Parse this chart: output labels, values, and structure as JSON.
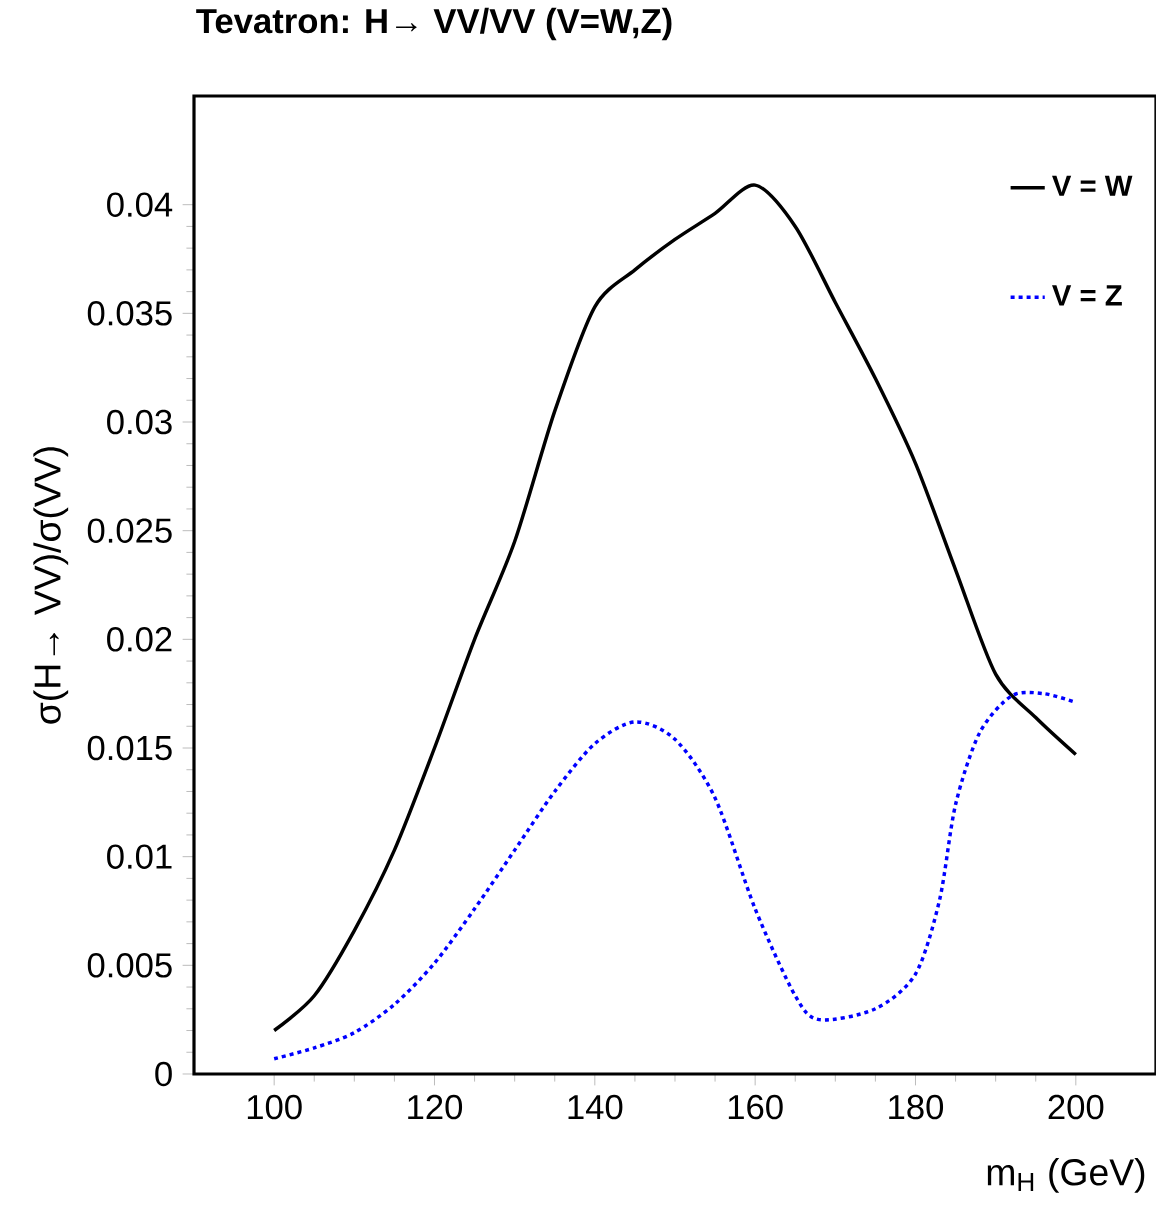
{
  "chart_data": {
    "type": "line",
    "title": "Tevatron: H→ VV/VV (V=W,Z)",
    "xlabel": "m$_{H}$ (GeV)",
    "ylabel": "σ(H→ VV)/σ(VV)",
    "x": [
      100,
      105,
      110,
      115,
      120,
      125,
      130,
      135,
      140,
      145,
      150,
      155,
      160,
      165,
      170,
      175,
      180,
      185,
      190,
      195,
      200
    ],
    "series": [
      {
        "name": "V = W",
        "color": "#000000",
        "line_style": "solid",
        "values": [
          0.002,
          0.0036,
          0.0066,
          0.0103,
          0.015,
          0.02,
          0.0245,
          0.0305,
          0.0353,
          0.037,
          0.0384,
          0.0396,
          0.0409,
          0.039,
          0.0355,
          0.032,
          0.0281,
          0.0232,
          0.0184,
          0.0164,
          0.0147
        ]
      },
      {
        "name": "V = Z",
        "color": "#0000ff",
        "line_style": "dotted",
        "x": [
          100,
          105,
          110,
          115,
          120,
          125,
          130,
          135,
          140,
          145,
          150,
          155,
          160,
          165,
          168,
          175,
          180,
          183,
          185,
          188,
          192,
          196,
          200
        ],
        "values": [
          0.0007,
          0.0012,
          0.0019,
          0.0032,
          0.0051,
          0.0076,
          0.0103,
          0.013,
          0.0152,
          0.0162,
          0.0154,
          0.0127,
          0.0076,
          0.0036,
          0.0025,
          0.003,
          0.0046,
          0.008,
          0.0124,
          0.0157,
          0.0174,
          0.0175,
          0.0171
        ]
      }
    ],
    "xlim": [
      90,
      210
    ],
    "ylim": [
      0,
      0.045
    ],
    "xticks": [
      100,
      120,
      140,
      160,
      180,
      200
    ],
    "yticks": [
      0,
      0.005,
      0.01,
      0.015,
      0.02,
      0.025,
      0.03,
      0.035,
      0.04
    ],
    "legend": "top right",
    "marker": "none",
    "grid": false
  }
}
